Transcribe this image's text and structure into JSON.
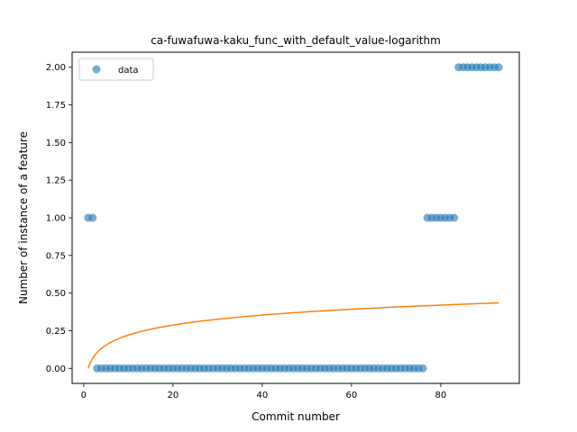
{
  "chart_data": {
    "type": "scatter",
    "title": "ca-fuwafuwa-kaku_func_with_default_value-logarithm",
    "xlabel": "Commit number",
    "ylabel": "Number of instance of a feature",
    "xlim": [
      -2.6,
      97.6
    ],
    "ylim": [
      -0.1,
      2.1
    ],
    "xticks": [
      0,
      20,
      40,
      60,
      80
    ],
    "yticks": [
      0.0,
      0.25,
      0.5,
      0.75,
      1.0,
      1.25,
      1.5,
      1.75,
      2.0
    ],
    "xtick_labels": [
      "0",
      "20",
      "40",
      "60",
      "80"
    ],
    "ytick_labels": [
      "0.00",
      "0.25",
      "0.50",
      "0.75",
      "1.00",
      "1.25",
      "1.50",
      "1.75",
      "2.00"
    ],
    "legend": {
      "position": "top-left",
      "entries": [
        "data"
      ]
    },
    "colors": {
      "data": "#1f77b4",
      "fit": "#ff7f0e"
    },
    "series": [
      {
        "name": "data",
        "kind": "scatter",
        "x": [
          1,
          2,
          3,
          4,
          5,
          6,
          7,
          8,
          9,
          10,
          11,
          12,
          13,
          14,
          15,
          16,
          17,
          18,
          19,
          20,
          21,
          22,
          23,
          24,
          25,
          26,
          27,
          28,
          29,
          30,
          31,
          32,
          33,
          34,
          35,
          36,
          37,
          38,
          39,
          40,
          41,
          42,
          43,
          44,
          45,
          46,
          47,
          48,
          49,
          50,
          51,
          52,
          53,
          54,
          55,
          56,
          57,
          58,
          59,
          60,
          61,
          62,
          63,
          64,
          65,
          66,
          67,
          68,
          69,
          70,
          71,
          72,
          73,
          74,
          75,
          76,
          77,
          78,
          79,
          80,
          81,
          82,
          83,
          84,
          85,
          86,
          87,
          88,
          89,
          90,
          91,
          92,
          93
        ],
        "y": [
          1,
          1,
          0,
          0,
          0,
          0,
          0,
          0,
          0,
          0,
          0,
          0,
          0,
          0,
          0,
          0,
          0,
          0,
          0,
          0,
          0,
          0,
          0,
          0,
          0,
          0,
          0,
          0,
          0,
          0,
          0,
          0,
          0,
          0,
          0,
          0,
          0,
          0,
          0,
          0,
          0,
          0,
          0,
          0,
          0,
          0,
          0,
          0,
          0,
          0,
          0,
          0,
          0,
          0,
          0,
          0,
          0,
          0,
          0,
          0,
          0,
          0,
          0,
          0,
          0,
          0,
          0,
          0,
          0,
          0,
          0,
          0,
          0,
          0,
          0,
          0,
          1,
          1,
          1,
          1,
          1,
          1,
          1,
          2,
          2,
          2,
          2,
          2,
          2,
          2,
          2,
          2,
          2
        ]
      },
      {
        "kind": "line",
        "model": "logarithmic",
        "a": 0.0,
        "b": 0.0959,
        "x_range": [
          1,
          93
        ]
      }
    ]
  }
}
